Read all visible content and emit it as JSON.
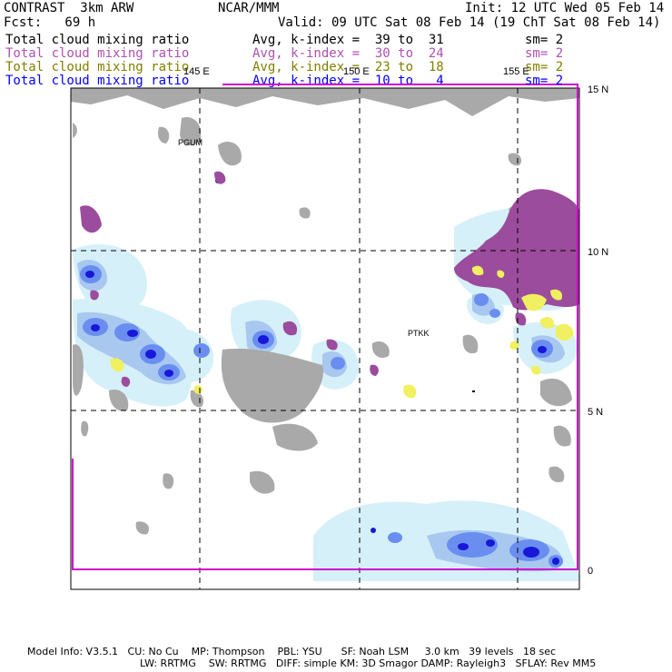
{
  "header": {
    "model": "CONTRAST  3km ARW",
    "org": "NCAR/MMM",
    "init": "Init: 12 UTC Wed 05 Feb 14",
    "fcst": "Fcst:   69 h",
    "valid": "Valid: 09 UTC Sat 08 Feb 14 (19 ChT Sat 08 Feb 14)"
  },
  "fields": [
    {
      "name": "Total cloud mixing ratio",
      "avg": "Avg, k-index =  39 to  31",
      "sm": "sm= 2",
      "color": "#000000"
    },
    {
      "name": "Total cloud mixing ratio",
      "avg": "Avg, k-index =  30 to  24",
      "sm": "sm= 2",
      "color": "#b050b0"
    },
    {
      "name": "Total cloud mixing ratio",
      "avg": "Avg, k-index =  23 to  18",
      "sm": "sm= 2",
      "color": "#808000"
    },
    {
      "name": "Total cloud mixing ratio",
      "avg": "Avg, k-index =  10 to   4",
      "sm": "sm= 2",
      "color": "#0000ff"
    }
  ],
  "map": {
    "lon_labels": [
      "145 E",
      "150 E",
      "155 E"
    ],
    "lat_labels": [
      "15 N",
      "10 N",
      "5 N",
      "0"
    ],
    "stations": [
      "PGUM",
      "PTKK"
    ],
    "colors": {
      "land": "#a9a9a9",
      "pale_cloud": "#d6f0fa",
      "light_blue": "#a8c8f0",
      "mid_blue": "#6a8ef0",
      "deep_blue": "#1818d8",
      "purple": "#9c4c9c",
      "yellow": "#f0f060",
      "border_line": "#d000d0"
    }
  },
  "footer": {
    "line1": "Model Info: V3.5.1   CU: No Cu    MP: Thompson    PBL: YSU      SF: Noah LSM     3.0 km   39 levels   18 sec",
    "line2": "LW: RRTMG    SW: RRTMG   DIFF: simple KM: 3D Smagor DAMP: Rayleigh3   SFLAY: Rev MM5"
  }
}
